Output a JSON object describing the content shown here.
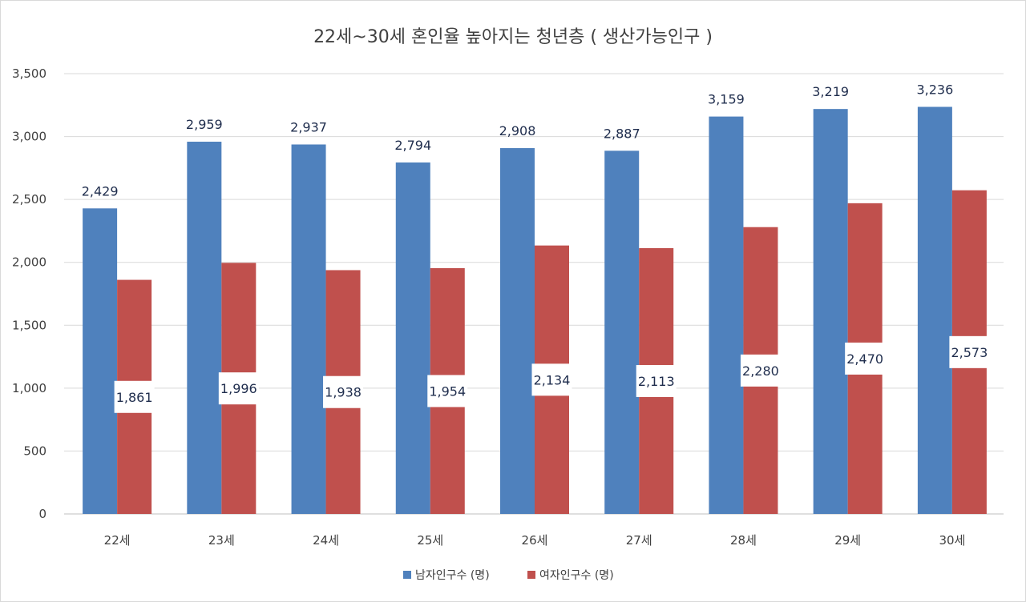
{
  "chart_data": {
    "type": "bar",
    "title": "22세~30세 혼인율 높아지는 청년층 ( 생산가능인구 )",
    "xlabel": "",
    "ylabel": "",
    "categories": [
      "22세",
      "23세",
      "24세",
      "25세",
      "26세",
      "27세",
      "28세",
      "29세",
      "30세"
    ],
    "series": [
      {
        "name": "남자인구수 (명)",
        "color": "#4f81bd",
        "values": [
          2429,
          2959,
          2937,
          2794,
          2908,
          2887,
          3159,
          3219,
          3236
        ],
        "labels": [
          "2,429",
          "2,959",
          "2,937",
          "2,794",
          "2,908",
          "2,887",
          "3,159",
          "3,219",
          "3,236"
        ]
      },
      {
        "name": "여자인구수 (명)",
        "color": "#c0504d",
        "values": [
          1861,
          1996,
          1938,
          1954,
          2134,
          2113,
          2280,
          2470,
          2573
        ],
        "labels": [
          "1,861",
          "1,996",
          "1,938",
          "1,954",
          "2,134",
          "2,113",
          "2,280",
          "2,470",
          "2,573"
        ]
      }
    ],
    "ylim": [
      0,
      3500
    ],
    "yticks": [
      0,
      500,
      1000,
      1500,
      2000,
      2500,
      3000,
      3500
    ],
    "ytick_labels": [
      "0",
      "500",
      "1,000",
      "1,500",
      "2,000",
      "2,500",
      "3,000",
      "3,500"
    ],
    "grid": true,
    "legend_position": "bottom"
  }
}
